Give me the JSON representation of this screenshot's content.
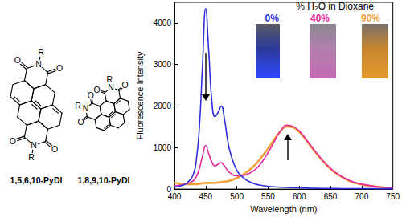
{
  "chart_data": {
    "type": "line",
    "legend_title": "% H₂O in Dioxane",
    "x_label": "Wavelength (nm)",
    "y_label": "Fluorescence Intensity",
    "x": [
      400,
      410,
      420,
      430,
      435,
      440,
      445,
      450,
      455,
      460,
      465,
      470,
      475,
      480,
      485,
      490,
      500,
      510,
      520,
      530,
      540,
      550,
      560,
      570,
      580,
      590,
      600,
      610,
      620,
      630,
      640,
      650,
      660,
      680,
      700,
      725,
      750
    ],
    "series": [
      {
        "name": "0%",
        "color": "#2f2fe0",
        "values": [
          50,
          80,
          150,
          350,
          700,
          1500,
          3000,
          4350,
          3300,
          2100,
          1750,
          1850,
          2000,
          1700,
          1200,
          850,
          450,
          280,
          180,
          120,
          90,
          70,
          55,
          45,
          40,
          35,
          30,
          25,
          20,
          18,
          16,
          15,
          14,
          12,
          11,
          10,
          10
        ]
      },
      {
        "name": "40%",
        "color": "#e8289a",
        "values": [
          80,
          100,
          130,
          200,
          300,
          500,
          800,
          1050,
          850,
          650,
          560,
          600,
          640,
          560,
          450,
          380,
          320,
          330,
          380,
          480,
          650,
          880,
          1150,
          1400,
          1540,
          1510,
          1400,
          1220,
          1020,
          830,
          650,
          500,
          380,
          210,
          120,
          60,
          30
        ]
      },
      {
        "name": "90%",
        "color": "#f2a23a",
        "values": [
          150,
          130,
          120,
          120,
          120,
          130,
          140,
          150,
          150,
          150,
          150,
          160,
          170,
          180,
          190,
          210,
          270,
          350,
          460,
          600,
          780,
          980,
          1200,
          1400,
          1510,
          1490,
          1380,
          1200,
          1000,
          810,
          640,
          490,
          370,
          200,
          110,
          55,
          25
        ]
      }
    ],
    "xlim": [
      400,
      750
    ],
    "xticks": [
      400,
      450,
      500,
      550,
      600,
      650,
      700,
      750
    ],
    "ylim": [
      0,
      4500
    ],
    "yticks": [
      0,
      1000,
      2000,
      3000,
      4000
    ],
    "grid": false,
    "legend": "top right"
  },
  "structures": [
    {
      "label": "1,5,6,10-PyDI",
      "substituent": "R",
      "nitrogen": "N",
      "oxygen": "O"
    },
    {
      "label": "1,8,9,10-PyDI",
      "substituent": "R",
      "nitrogen": "N",
      "oxygen": "O"
    }
  ]
}
